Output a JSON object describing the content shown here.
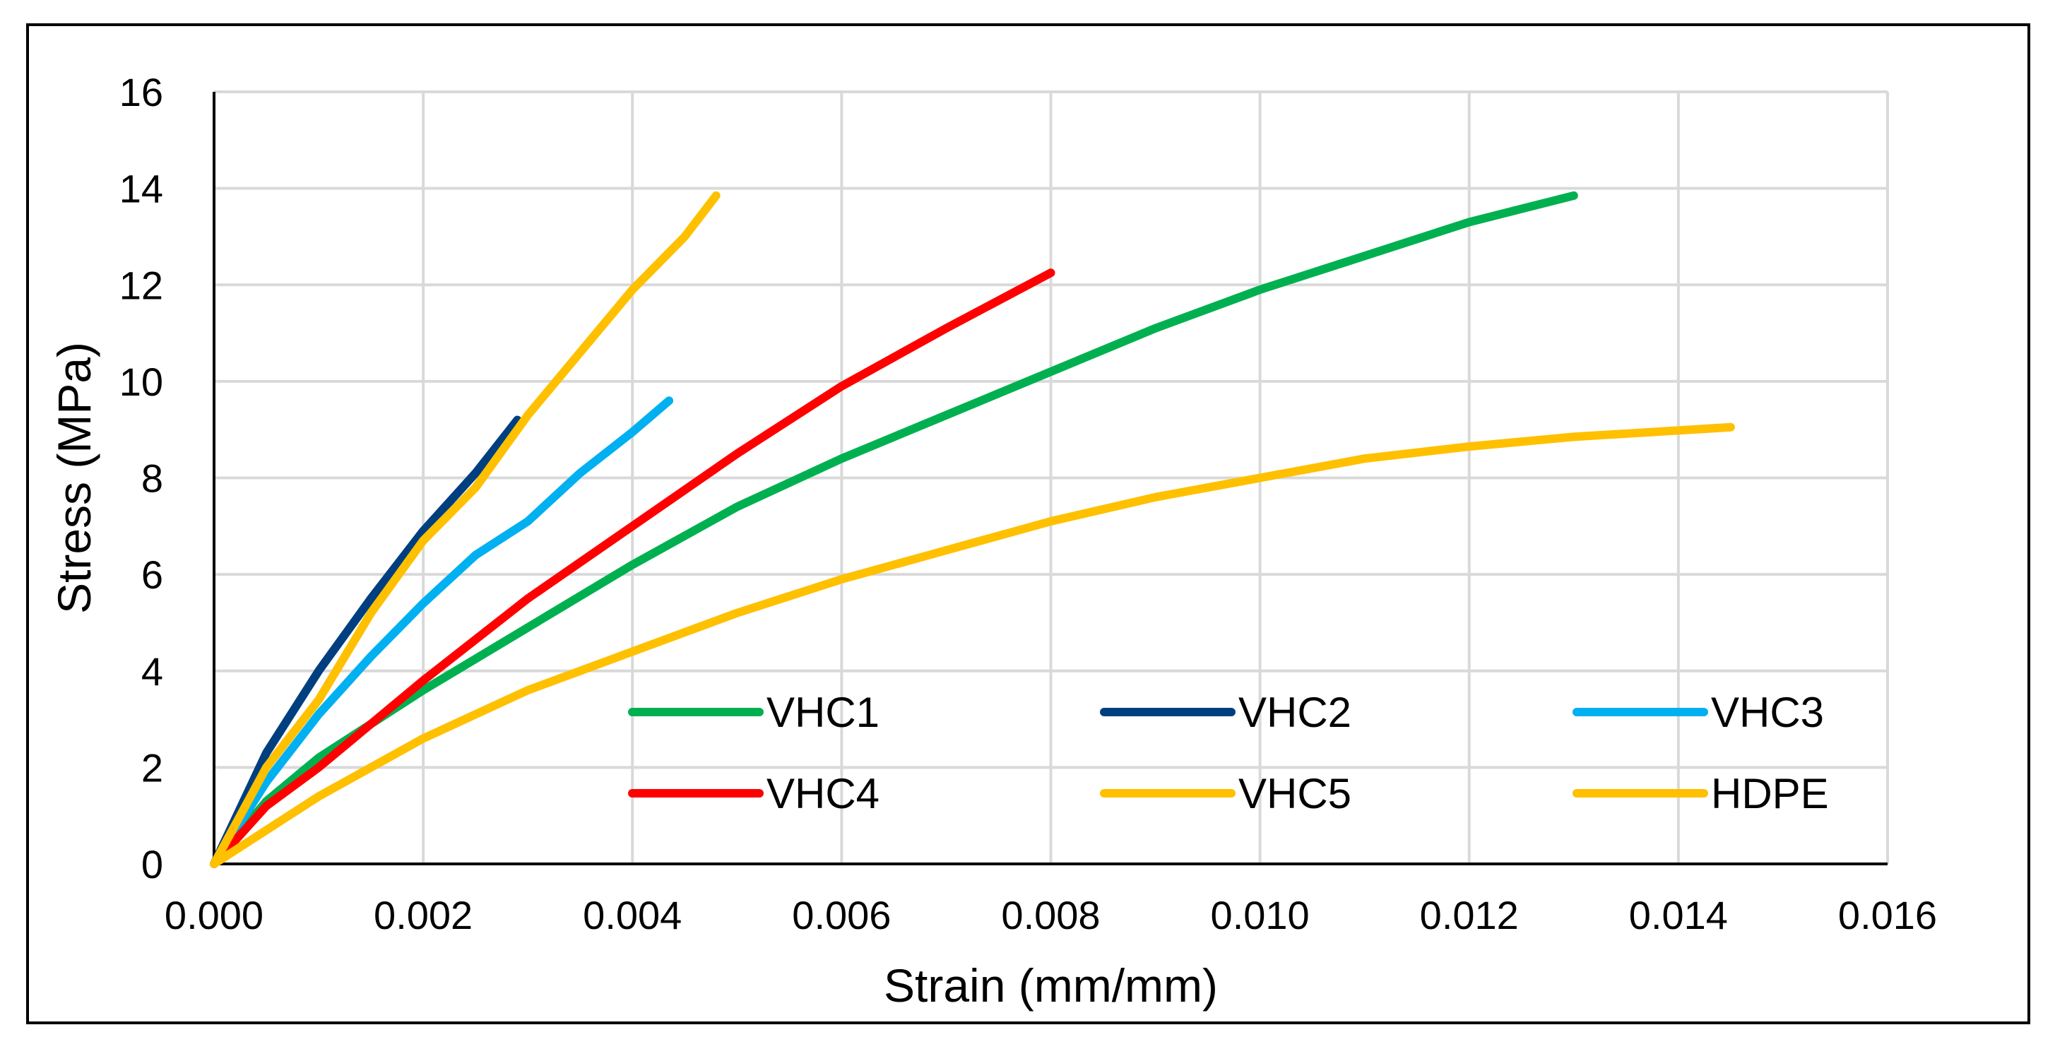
{
  "chart_data": {
    "type": "line",
    "title": "",
    "xlabel": "Strain (mm/mm)",
    "ylabel": "Stress (MPa)",
    "xlim": [
      0,
      0.016
    ],
    "ylim": [
      0,
      16
    ],
    "x_ticks": [
      0,
      0.002,
      0.004,
      0.006,
      0.008,
      0.01,
      0.012,
      0.014,
      0.016
    ],
    "x_tick_labels": [
      "0.000",
      "0.002",
      "0.004",
      "0.006",
      "0.008",
      "0.010",
      "0.012",
      "0.014",
      "0.016"
    ],
    "y_ticks": [
      0,
      2,
      4,
      6,
      8,
      10,
      12,
      14,
      16
    ],
    "y_tick_labels": [
      "0",
      "2",
      "4",
      "6",
      "8",
      "10",
      "12",
      "14",
      "16"
    ],
    "grid": true,
    "legend_position": "bottom-right inside, 3 columns",
    "series": [
      {
        "name": "VHC1",
        "color": "#00B050",
        "x": [
          0,
          0.0005,
          0.001,
          0.0015,
          0.002,
          0.003,
          0.004,
          0.005,
          0.006,
          0.007,
          0.008,
          0.009,
          0.01,
          0.011,
          0.012,
          0.013
        ],
        "y": [
          0,
          1.3,
          2.2,
          2.9,
          3.6,
          4.9,
          6.2,
          7.4,
          8.4,
          9.3,
          10.2,
          11.1,
          11.9,
          12.6,
          13.3,
          13.85
        ]
      },
      {
        "name": "VHC2",
        "color": "#003F7F",
        "x": [
          0,
          0.0005,
          0.001,
          0.0015,
          0.002,
          0.0025,
          0.0029
        ],
        "y": [
          0,
          2.3,
          4.0,
          5.5,
          6.9,
          8.1,
          9.2
        ]
      },
      {
        "name": "VHC3",
        "color": "#00B0F0",
        "x": [
          0,
          0.0005,
          0.001,
          0.0015,
          0.002,
          0.0025,
          0.003,
          0.0035,
          0.004,
          0.00435
        ],
        "y": [
          0,
          1.7,
          3.1,
          4.3,
          5.4,
          6.4,
          7.1,
          8.1,
          8.95,
          9.6
        ]
      },
      {
        "name": "VHC4",
        "color": "#FF0000",
        "x": [
          0,
          0.0005,
          0.001,
          0.0015,
          0.002,
          0.003,
          0.004,
          0.005,
          0.006,
          0.007,
          0.008
        ],
        "y": [
          0,
          1.2,
          2.0,
          2.9,
          3.8,
          5.5,
          7.0,
          8.5,
          9.9,
          11.1,
          12.25
        ]
      },
      {
        "name": "VHC5",
        "color": "#FFC000",
        "x": [
          0,
          0.0005,
          0.001,
          0.0015,
          0.002,
          0.0025,
          0.003,
          0.0035,
          0.004,
          0.0045,
          0.0048
        ],
        "y": [
          0,
          2.0,
          3.4,
          5.2,
          6.7,
          7.8,
          9.3,
          10.6,
          11.9,
          13.0,
          13.85
        ]
      },
      {
        "name": "HDPE",
        "color": "#FFC000",
        "x": [
          0,
          0.001,
          0.002,
          0.003,
          0.004,
          0.005,
          0.006,
          0.007,
          0.008,
          0.009,
          0.01,
          0.011,
          0.012,
          0.013,
          0.0145
        ],
        "y": [
          0,
          1.4,
          2.6,
          3.6,
          4.4,
          5.2,
          5.9,
          6.5,
          7.1,
          7.6,
          8.0,
          8.4,
          8.65,
          8.85,
          9.05
        ]
      }
    ]
  }
}
